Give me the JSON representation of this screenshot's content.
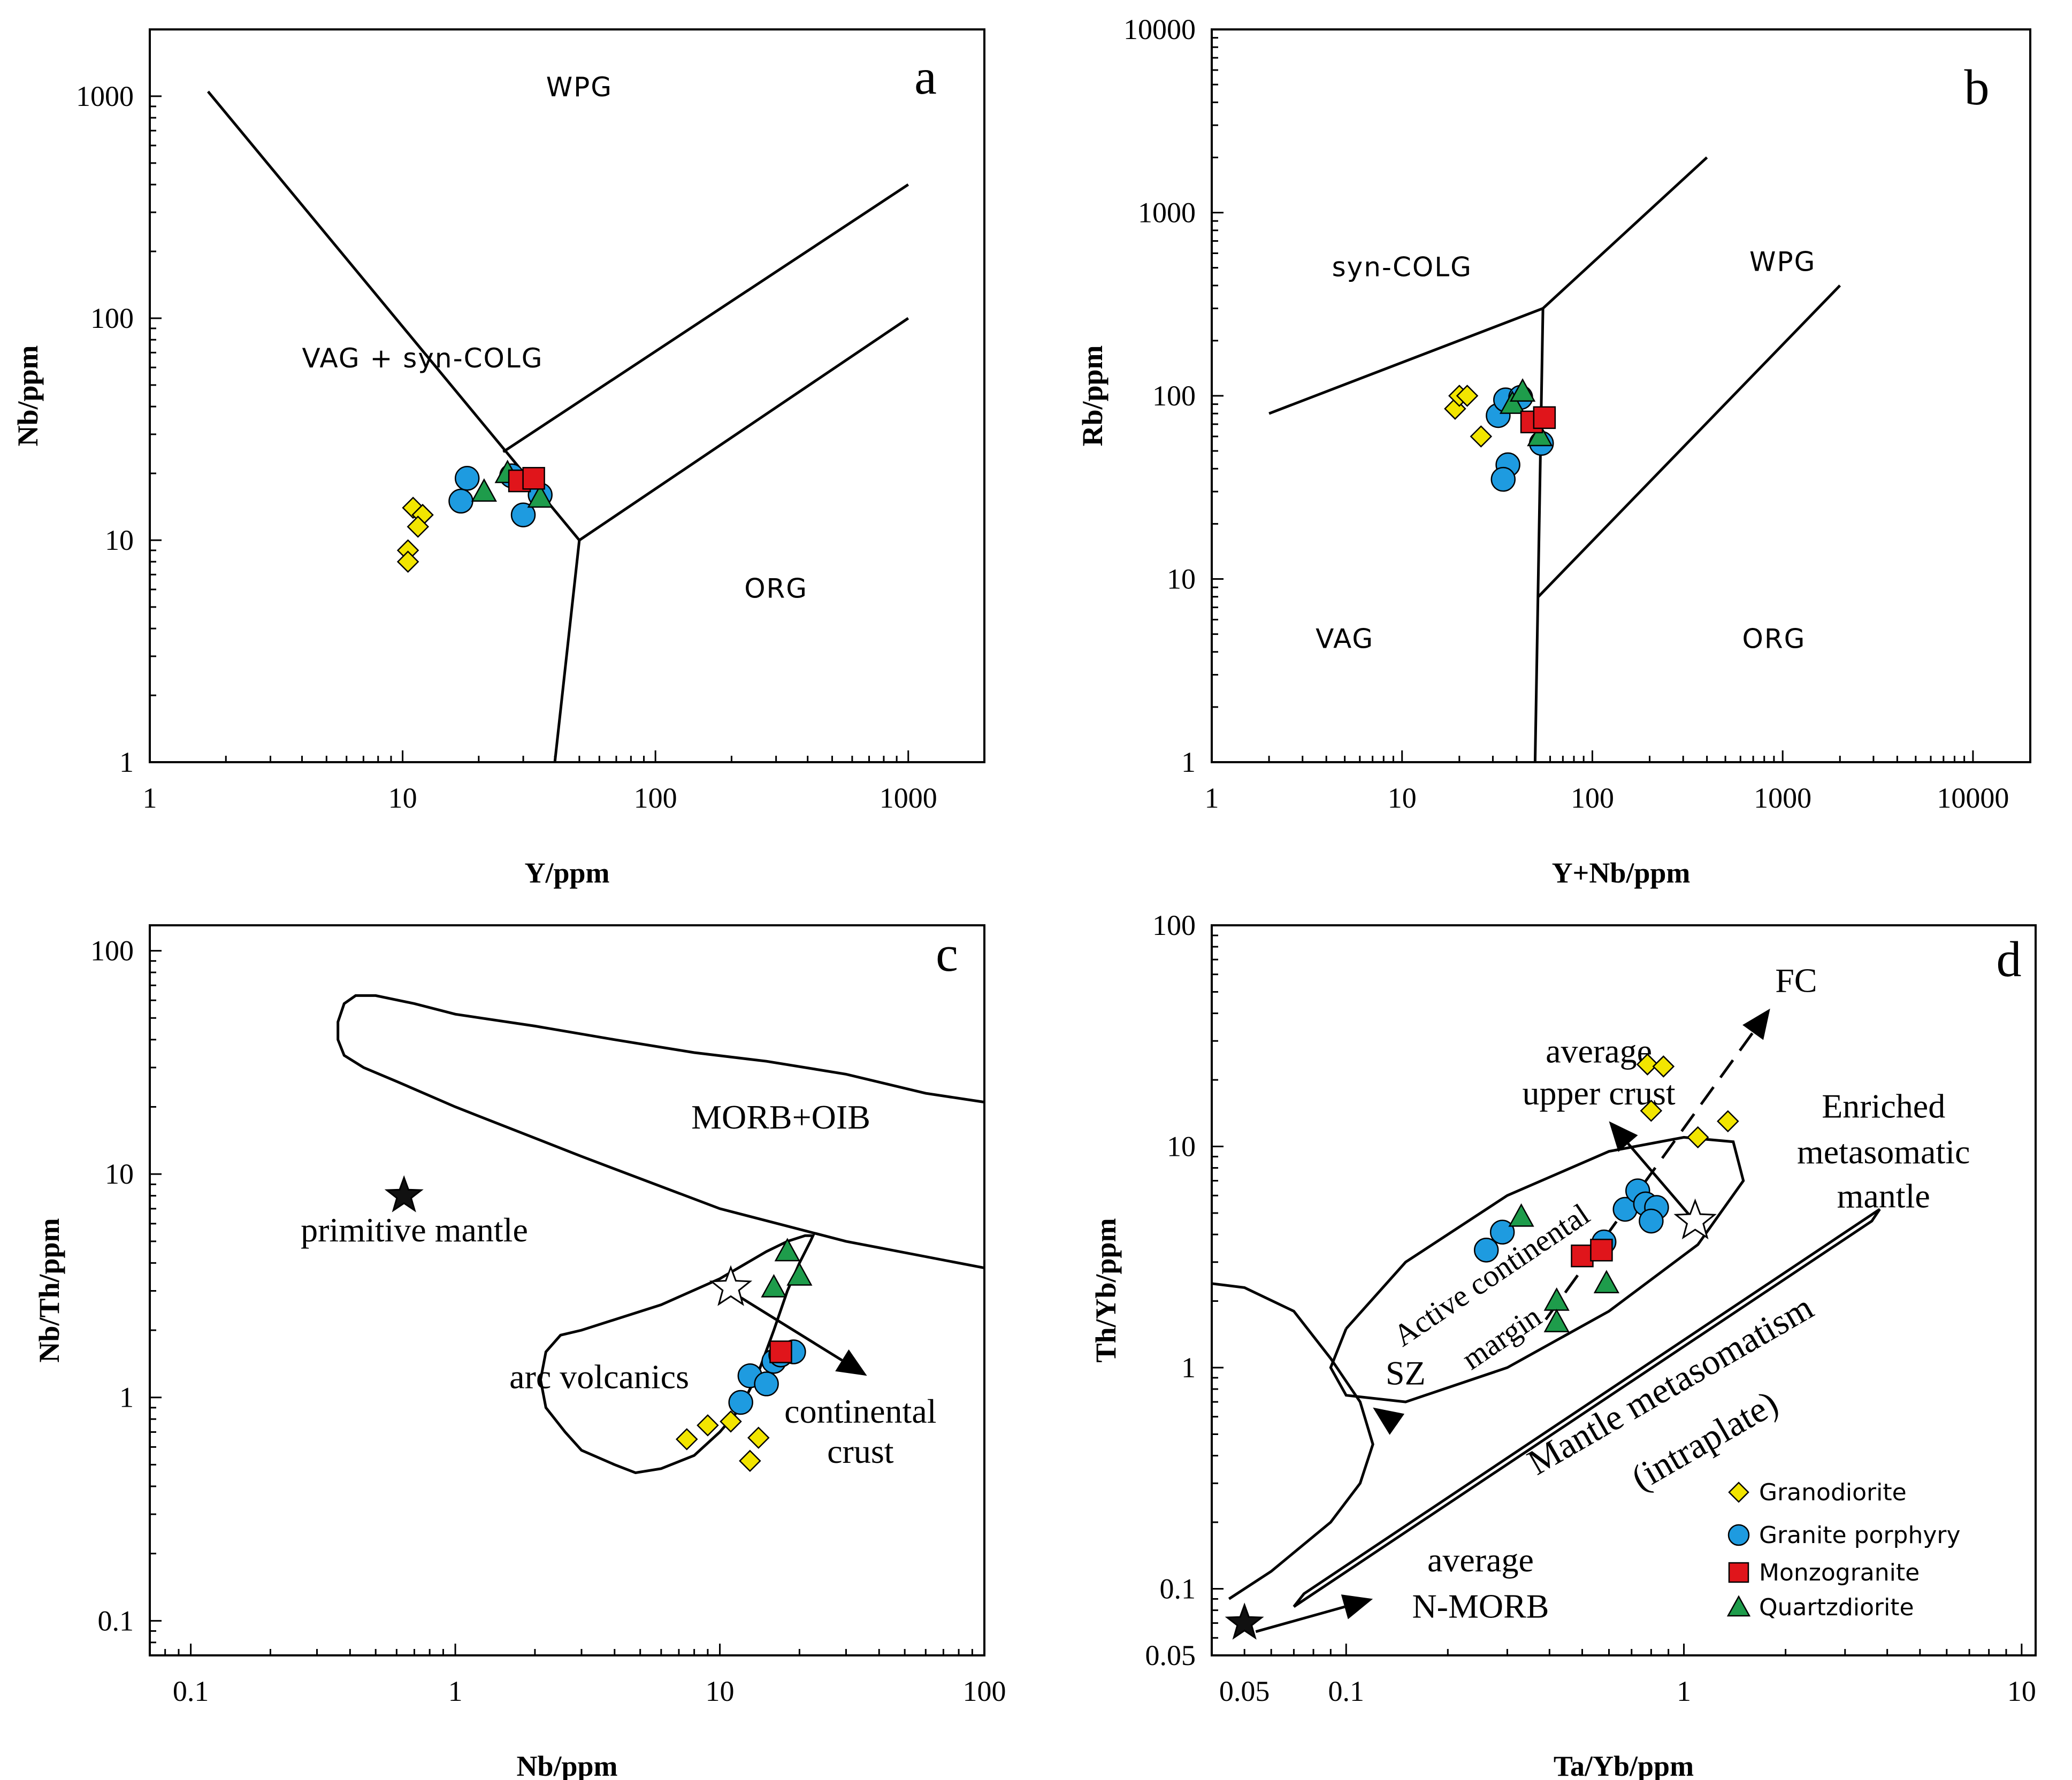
{
  "legend": {
    "items": [
      {
        "key": "granodiorite",
        "label": "Granodiorite",
        "marker": "diamond",
        "color": "#f2e500"
      },
      {
        "key": "porphyry",
        "label": "Granite porphyry",
        "marker": "circle",
        "color": "#1e9be0"
      },
      {
        "key": "monzogranite",
        "label": "Monzogranite",
        "marker": "square",
        "color": "#e0151b"
      },
      {
        "key": "quartzdiorite",
        "label": "Quartzdiorite",
        "marker": "triangle",
        "color": "#1e9c4b"
      }
    ]
  },
  "chart_data": [
    {
      "id": "a",
      "type": "scatter",
      "letter": "a",
      "xlabel": "Y/ppm",
      "ylabel": "Nb/ppm",
      "xscale": "log",
      "yscale": "log",
      "xlim": [
        1,
        2000
      ],
      "ylim": [
        1,
        2000
      ],
      "xticks": [
        {
          "v": 1,
          "label": "1"
        },
        {
          "v": 10,
          "label": "10"
        },
        {
          "v": 100,
          "label": "100"
        },
        {
          "v": 1000,
          "label": "1000"
        }
      ],
      "yticks": [
        {
          "v": 1,
          "label": "1"
        },
        {
          "v": 10,
          "label": "10"
        },
        {
          "v": 100,
          "label": "100"
        },
        {
          "v": 1000,
          "label": "1000"
        }
      ],
      "field_lines": [
        [
          [
            1.7,
            1050
          ],
          [
            50,
            10
          ],
          [
            40,
            1
          ]
        ],
        [
          [
            50,
            10
          ],
          [
            1000,
            100
          ]
        ],
        [
          [
            25,
            25
          ],
          [
            1000,
            400
          ]
        ]
      ],
      "field_labels": [
        {
          "text": "WPG",
          "x": 50,
          "y": 1000,
          "style": "sans"
        },
        {
          "text": "VAG + syn-COLG",
          "x": 12,
          "y": 60,
          "style": "sans"
        },
        {
          "text": "ORG",
          "x": 300,
          "y": 5.5,
          "style": "sans"
        }
      ],
      "series": [
        {
          "key": "granodiorite",
          "points": [
            [
              11,
              14
            ],
            [
              12,
              13
            ],
            [
              11.5,
              11.5
            ],
            [
              10.5,
              9
            ],
            [
              10.5,
              8
            ]
          ]
        },
        {
          "key": "porphyry",
          "points": [
            [
              17,
              15
            ],
            [
              18,
              19
            ],
            [
              27,
              19.5
            ],
            [
              30,
              13
            ],
            [
              35,
              16
            ]
          ]
        },
        {
          "key": "quartzdiorite",
          "points": [
            [
              21,
              16.5
            ],
            [
              26,
              20
            ],
            [
              35,
              15.5
            ]
          ]
        },
        {
          "key": "monzogranite",
          "points": [
            [
              29,
              18.5
            ],
            [
              33,
              19
            ]
          ]
        }
      ]
    },
    {
      "id": "b",
      "type": "scatter",
      "letter": "b",
      "xlabel": "Y+Nb/ppm",
      "ylabel": "Rb/ppm",
      "xscale": "log",
      "yscale": "log",
      "xlim": [
        1,
        20000
      ],
      "ylim": [
        1,
        10000
      ],
      "xticks": [
        {
          "v": 1,
          "label": "1"
        },
        {
          "v": 10,
          "label": "10"
        },
        {
          "v": 100,
          "label": "100"
        },
        {
          "v": 1000,
          "label": "1000"
        },
        {
          "v": 10000,
          "label": "10000"
        }
      ],
      "yticks": [
        {
          "v": 1,
          "label": "1"
        },
        {
          "v": 10,
          "label": "10"
        },
        {
          "v": 100,
          "label": "100"
        },
        {
          "v": 1000,
          "label": "1000"
        },
        {
          "v": 10000,
          "label": "10000"
        }
      ],
      "field_lines": [
        [
          [
            2,
            80
          ],
          [
            55,
            300
          ],
          [
            400,
            2000
          ]
        ],
        [
          [
            55,
            300
          ],
          [
            50,
            1
          ]
        ],
        [
          [
            52,
            8
          ],
          [
            2000,
            400
          ]
        ]
      ],
      "field_labels": [
        {
          "text": "syn-COLG",
          "x": 10,
          "y": 450,
          "style": "sans"
        },
        {
          "text": "WPG",
          "x": 1000,
          "y": 480,
          "style": "sans"
        },
        {
          "text": "VAG",
          "x": 5,
          "y": 4.2,
          "style": "sans"
        },
        {
          "text": "ORG",
          "x": 900,
          "y": 4.2,
          "style": "sans"
        }
      ],
      "series": [
        {
          "key": "granodiorite",
          "points": [
            [
              19,
              85
            ],
            [
              20,
              100
            ],
            [
              22,
              100
            ],
            [
              26,
              60
            ]
          ]
        },
        {
          "key": "porphyry",
          "points": [
            [
              32,
              78
            ],
            [
              35,
              95
            ],
            [
              42,
              98
            ],
            [
              36,
              42
            ],
            [
              34,
              35
            ],
            [
              54,
              55
            ]
          ]
        },
        {
          "key": "quartzdiorite",
          "points": [
            [
              38,
              90
            ],
            [
              43,
              105
            ],
            [
              53,
              60
            ]
          ]
        },
        {
          "key": "monzogranite",
          "points": [
            [
              48,
              72
            ],
            [
              56,
              76
            ]
          ]
        }
      ]
    },
    {
      "id": "c",
      "type": "scatter",
      "letter": "c",
      "xlabel": "Nb/ppm",
      "ylabel": "Nb/Th/ppm",
      "xscale": "log",
      "yscale": "log",
      "xlim": [
        0.07,
        100
      ],
      "ylim": [
        0.07,
        130
      ],
      "xticks": [
        {
          "v": 0.1,
          "label": "0.1"
        },
        {
          "v": 1,
          "label": "1"
        },
        {
          "v": 10,
          "label": "10"
        },
        {
          "v": 100,
          "label": "100"
        }
      ],
      "yticks": [
        {
          "v": 0.1,
          "label": "0.1"
        },
        {
          "v": 1,
          "label": "1"
        },
        {
          "v": 10,
          "label": "10"
        },
        {
          "v": 100,
          "label": "100"
        }
      ],
      "field_lines": [
        [
          [
            100,
            21
          ],
          [
            60,
            23
          ],
          [
            30,
            28
          ],
          [
            15,
            32
          ],
          [
            8,
            35
          ],
          [
            4,
            40
          ],
          [
            2,
            46
          ],
          [
            1,
            52
          ],
          [
            0.7,
            58
          ],
          [
            0.5,
            63
          ],
          [
            0.42,
            63
          ],
          [
            0.38,
            58
          ],
          [
            0.36,
            48
          ],
          [
            0.36,
            40
          ],
          [
            0.38,
            34
          ],
          [
            0.45,
            30
          ],
          [
            0.6,
            26
          ],
          [
            1,
            20
          ],
          [
            3,
            12
          ],
          [
            10,
            7
          ],
          [
            30,
            5
          ],
          [
            100,
            3.8
          ]
        ],
        [
          [
            4,
            0.5
          ],
          [
            4.8,
            0.46
          ],
          [
            6,
            0.48
          ],
          [
            8,
            0.55
          ],
          [
            10,
            0.7
          ],
          [
            12,
            0.9
          ],
          [
            14,
            1.3
          ],
          [
            16,
            2
          ],
          [
            18,
            3
          ],
          [
            20,
            4
          ],
          [
            22,
            5
          ],
          [
            22.5,
            5.3
          ],
          [
            21,
            5.3
          ],
          [
            18,
            5
          ],
          [
            15,
            4.5
          ],
          [
            10,
            3.4
          ],
          [
            6,
            2.6
          ],
          [
            3,
            2
          ],
          [
            2.5,
            1.9
          ],
          [
            2.2,
            1.6
          ],
          [
            2.1,
            1.2
          ],
          [
            2.2,
            0.9
          ],
          [
            2.6,
            0.7
          ],
          [
            3,
            0.58
          ],
          [
            4,
            0.5
          ]
        ]
      ],
      "arrows": [
        [
          [
            12,
            2.8
          ],
          [
            36,
            1.25
          ]
        ]
      ],
      "stars": [
        {
          "x": 0.64,
          "y": 8.0,
          "filled": true
        },
        {
          "x": 11,
          "y": 3.1,
          "filled": false
        }
      ],
      "field_labels": [
        {
          "text": "MORB+OIB",
          "x": 17,
          "y": 16,
          "style": "serif"
        },
        {
          "text": "primitive mantle",
          "x": 0.7,
          "y": 5.0,
          "style": "serif"
        },
        {
          "text": "arc volcanics",
          "x": 3.5,
          "y": 1.1,
          "style": "serif"
        },
        {
          "text": "continental",
          "x": 34,
          "y": 0.77,
          "style": "serif"
        },
        {
          "text": "crust",
          "x": 34,
          "y": 0.51,
          "style": "serif"
        }
      ],
      "series": [
        {
          "key": "granodiorite",
          "points": [
            [
              7.5,
              0.65
            ],
            [
              9,
              0.75
            ],
            [
              11,
              0.78
            ],
            [
              13,
              0.52
            ],
            [
              14,
              0.66
            ]
          ]
        },
        {
          "key": "porphyry",
          "points": [
            [
              12,
              0.95
            ],
            [
              13,
              1.25
            ],
            [
              15,
              1.15
            ],
            [
              16,
              1.45
            ],
            [
              17,
              1.55
            ],
            [
              19,
              1.6
            ]
          ]
        },
        {
          "key": "quartzdiorite",
          "points": [
            [
              16,
              3.1
            ],
            [
              18,
              4.5
            ],
            [
              20,
              3.5
            ]
          ]
        },
        {
          "key": "monzogranite",
          "points": [
            [
              17,
              1.6
            ]
          ]
        }
      ]
    },
    {
      "id": "d",
      "type": "scatter",
      "letter": "d",
      "xlabel": "Ta/Yb/ppm",
      "ylabel": "Th/Yb/ppm",
      "xscale": "log",
      "yscale": "log",
      "xlim": [
        0.04,
        11
      ],
      "ylim": [
        0.05,
        100
      ],
      "xticks": [
        {
          "v": 0.05,
          "label": "0.05"
        },
        {
          "v": 0.1,
          "label": "0.1"
        },
        {
          "v": 1,
          "label": "1"
        },
        {
          "v": 10,
          "label": "10"
        }
      ],
      "yticks": [
        {
          "v": 0.05,
          "label": "0.05"
        },
        {
          "v": 0.1,
          "label": "0.1"
        },
        {
          "v": 1,
          "label": "1"
        },
        {
          "v": 10,
          "label": "10"
        },
        {
          "v": 100,
          "label": "100"
        }
      ],
      "field_lines": [
        [
          [
            0.04,
            2.4
          ],
          [
            0.05,
            2.3
          ],
          [
            0.07,
            1.8
          ],
          [
            0.09,
            1.1
          ],
          [
            0.11,
            0.7
          ],
          [
            0.12,
            0.45
          ],
          [
            0.11,
            0.3
          ],
          [
            0.09,
            0.2
          ],
          [
            0.06,
            0.12
          ],
          [
            0.045,
            0.09
          ]
        ],
        [
          [
            0.1,
            1.5
          ],
          [
            0.15,
            3
          ],
          [
            0.3,
            6
          ],
          [
            0.6,
            9.5
          ],
          [
            1,
            11
          ],
          [
            1.4,
            10.5
          ],
          [
            1.5,
            7
          ],
          [
            1.1,
            3.6
          ],
          [
            0.6,
            1.8
          ],
          [
            0.3,
            1
          ],
          [
            0.15,
            0.7
          ],
          [
            0.1,
            0.75
          ],
          [
            0.09,
            1.0
          ],
          [
            0.1,
            1.5
          ]
        ],
        [
          [
            0.07,
            0.083
          ],
          [
            3.6,
            4.6
          ],
          [
            3.8,
            5.2
          ],
          [
            0.075,
            0.095
          ],
          [
            0.07,
            0.083
          ]
        ]
      ],
      "arrows": [
        [
          [
            1.05,
            4.8
          ],
          [
            0.6,
            13
          ]
        ],
        [
          [
            0.14,
            0.56
          ],
          [
            0.12,
            0.66
          ]
        ],
        [
          [
            0.054,
            0.064
          ],
          [
            0.12,
            0.09
          ]
        ]
      ],
      "dashed_arrows": [
        [
          [
            0.39,
            1.65
          ],
          [
            1.8,
            42
          ]
        ]
      ],
      "stars": [
        {
          "x": 0.05,
          "y": 0.07,
          "filled": true
        },
        {
          "x": 1.08,
          "y": 4.6,
          "filled": false
        }
      ],
      "field_labels": [
        {
          "text": "FC",
          "x": 2.15,
          "y": 50,
          "style": "serif"
        },
        {
          "text": "average",
          "x": 0.56,
          "y": 24,
          "style": "serif"
        },
        {
          "text": "upper crust",
          "x": 0.56,
          "y": 15.5,
          "style": "serif"
        },
        {
          "text": "Enriched",
          "x": 3.9,
          "y": 13.5,
          "style": "serif"
        },
        {
          "text": "metasomatic",
          "x": 3.9,
          "y": 8.4,
          "style": "serif"
        },
        {
          "text": "mantle",
          "x": 3.9,
          "y": 5.3,
          "style": "serif"
        },
        {
          "text": "Active continental",
          "x": 0.28,
          "y": 2.4,
          "style": "serif",
          "rotate": -34,
          "size": 58
        },
        {
          "text": "margin",
          "x": 0.3,
          "y": 1.25,
          "style": "serif",
          "rotate": -34,
          "size": 58
        },
        {
          "text": "Mantle metasomatism",
          "x": 0.95,
          "y": 0.75,
          "style": "serif",
          "rotate": -30,
          "size": 68
        },
        {
          "text": "(intraplate)",
          "x": 1.2,
          "y": 0.42,
          "style": "serif",
          "rotate": -30,
          "size": 68
        },
        {
          "text": "SZ",
          "x": 0.15,
          "y": 0.84,
          "style": "serif"
        },
        {
          "text": "average",
          "x": 0.25,
          "y": 0.12,
          "style": "serif"
        },
        {
          "text": "N-MORB",
          "x": 0.25,
          "y": 0.074,
          "style": "serif"
        }
      ],
      "series": [
        {
          "key": "granodiorite",
          "points": [
            [
              0.78,
              23.5
            ],
            [
              0.87,
              23
            ],
            [
              0.8,
              14.5
            ],
            [
              1.1,
              11
            ],
            [
              1.35,
              13
            ]
          ]
        },
        {
          "key": "porphyry",
          "points": [
            [
              0.26,
              3.4
            ],
            [
              0.29,
              4.1
            ],
            [
              0.58,
              3.7
            ],
            [
              0.67,
              5.2
            ],
            [
              0.73,
              6.3
            ],
            [
              0.77,
              5.5
            ],
            [
              0.83,
              5.3
            ],
            [
              0.8,
              4.6
            ]
          ]
        },
        {
          "key": "quartzdiorite",
          "points": [
            [
              0.33,
              4.8
            ],
            [
              0.42,
              2
            ],
            [
              0.42,
              1.6
            ],
            [
              0.59,
              2.4
            ]
          ]
        },
        {
          "key": "monzogranite",
          "points": [
            [
              0.5,
              3.2
            ],
            [
              0.57,
              3.4
            ]
          ]
        }
      ]
    }
  ]
}
